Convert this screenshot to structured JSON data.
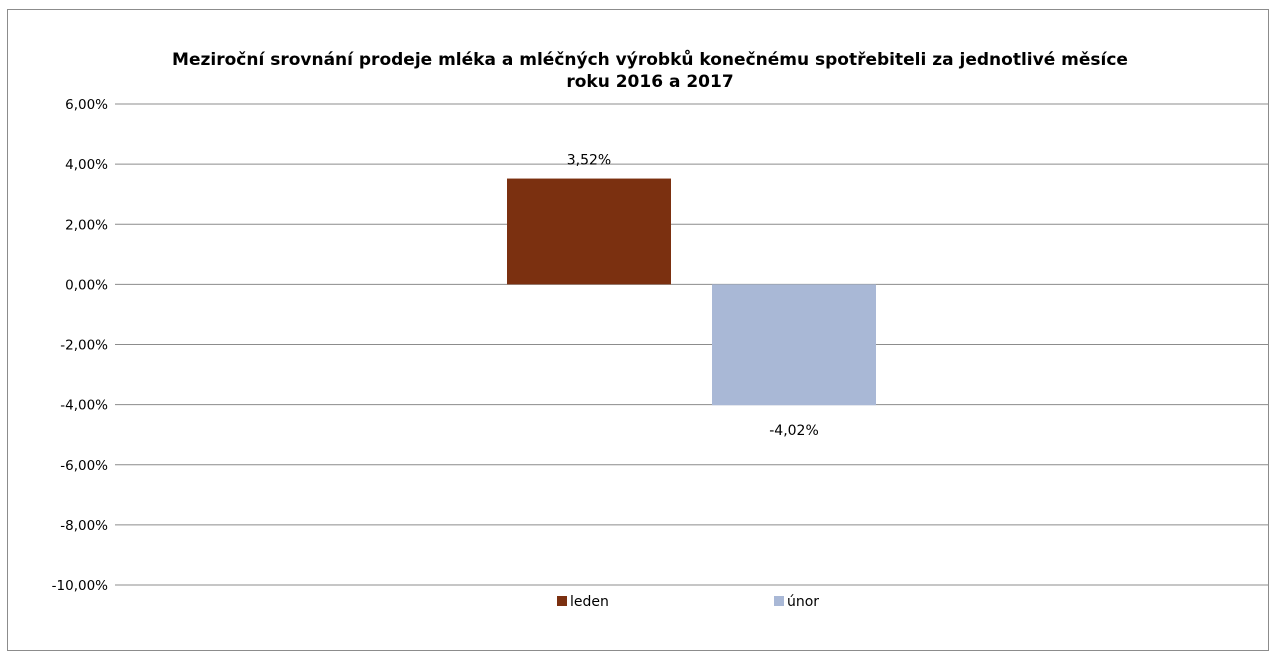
{
  "chart_data": {
    "type": "bar",
    "title": "Meziroční srovnání prodeje mléka a mléčných výrobků konečnému spotřebiteli za jednotlivé měsíce roku 2016 a 2017",
    "categories": [
      ""
    ],
    "series": [
      {
        "name": "leden",
        "values": [
          3.52
        ],
        "label": "3,52%",
        "color": "#7b3010"
      },
      {
        "name": "únor",
        "values": [
          -4.02
        ],
        "label": "-4,02%",
        "color": "#a9b8d6"
      }
    ],
    "y_ticks": [
      6,
      4,
      2,
      0,
      -2,
      -4,
      -6,
      -8,
      -10
    ],
    "y_tick_labels": [
      "6,00%",
      "4,00%",
      "2,00%",
      "0,00%",
      "-2,00%",
      "-4,00%",
      "-6,00%",
      "-8,00%",
      "-10,00%"
    ],
    "ylim": [
      -10,
      6
    ],
    "grid": true,
    "legend_position": "bottom",
    "xlabel": "",
    "ylabel": ""
  }
}
